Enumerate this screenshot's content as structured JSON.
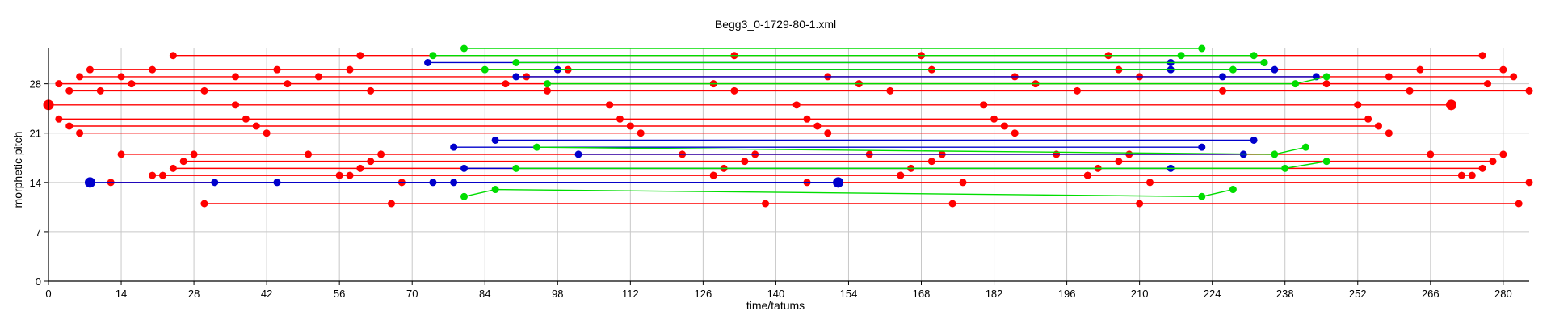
{
  "chart_data": {
    "type": "scatter",
    "title": "Begg3_0-1729-80-1.xml",
    "xlabel": "time/tatums",
    "ylabel": "morphetic pitch",
    "xlim": [
      0,
      285
    ],
    "ylim": [
      0,
      33
    ],
    "xticks": [
      0,
      14,
      28,
      42,
      56,
      70,
      84,
      98,
      112,
      126,
      140,
      154,
      168,
      182,
      196,
      210,
      224,
      238,
      252,
      266,
      280
    ],
    "yticks": [
      0,
      7,
      14,
      21,
      28
    ],
    "grid": true,
    "colors": {
      "red": "#ff0000",
      "blue": "#0000cc",
      "green": "#00dd00",
      "grid": "#c8c8c8"
    },
    "series": [
      {
        "color": "red",
        "lines": [
          {
            "x": [
              0,
              36,
              108,
              144,
              180,
              252,
              270
            ],
            "y": [
              25,
              25,
              25,
              25,
              25,
              25,
              25
            ],
            "big": true
          },
          {
            "x": [
              2,
              16,
              46,
              88,
              128,
              156,
              190,
              246,
              277
            ],
            "y": [
              28,
              28,
              28,
              28,
              28,
              28,
              28,
              28,
              28
            ]
          },
          {
            "x": [
              4,
              10,
              30,
              62,
              96,
              132,
              162,
              198,
              226,
              262,
              285
            ],
            "y": [
              27,
              27,
              27,
              27,
              27,
              27,
              27,
              27,
              27,
              27,
              27
            ]
          },
          {
            "x": [
              6,
              14,
              36,
              52,
              92,
              150,
              186,
              210,
              258,
              282
            ],
            "y": [
              29,
              29,
              29,
              29,
              29,
              29,
              29,
              29,
              29,
              29
            ]
          },
          {
            "x": [
              8,
              20,
              44,
              58,
              100,
              170,
              206,
              264,
              280
            ],
            "y": [
              30,
              30,
              30,
              30,
              30,
              30,
              30,
              30,
              30
            ]
          },
          {
            "x": [
              24,
              60,
              132,
              168,
              204,
              276
            ],
            "y": [
              32,
              32,
              32,
              32,
              32,
              32
            ]
          },
          {
            "x": [
              2,
              38,
              110,
              146,
              182,
              254
            ],
            "y": [
              23,
              23,
              23,
              23,
              23,
              23
            ]
          },
          {
            "x": [
              4,
              40,
              112,
              148,
              184,
              256
            ],
            "y": [
              22,
              22,
              22,
              22,
              22,
              22
            ]
          },
          {
            "x": [
              6,
              42,
              114,
              150,
              186,
              258
            ],
            "y": [
              21,
              21,
              21,
              21,
              21,
              21
            ]
          },
          {
            "x": [
              14,
              50,
              122,
              158,
              194,
              266
            ],
            "y": [
              18,
              18,
              18,
              18,
              18,
              18
            ]
          },
          {
            "x": [
              20,
              56,
              128,
              164,
              200,
              272
            ],
            "y": [
              15,
              15,
              15,
              15,
              15,
              15
            ]
          },
          {
            "x": [
              30,
              66,
              138,
              174,
              210,
              283
            ],
            "y": [
              11,
              11,
              11,
              11,
              11,
              11
            ]
          },
          {
            "x": [
              12,
              68,
              146,
              176,
              212,
              285
            ],
            "y": [
              14,
              14,
              14,
              14,
              14,
              14
            ]
          },
          {
            "x": [
              26,
              62,
              134,
              170,
              206,
              278
            ],
            "y": [
              17,
              17,
              17,
              17,
              17,
              17
            ]
          },
          {
            "x": [
              28,
              64,
              136,
              172,
              208,
              280
            ],
            "y": [
              18,
              18,
              18,
              18,
              18,
              18
            ]
          },
          {
            "x": [
              24,
              60,
              130,
              166,
              202,
              276
            ],
            "y": [
              16,
              16,
              16,
              16,
              16,
              16
            ]
          },
          {
            "x": [
              22,
              58,
              128,
              164,
              200,
              274
            ],
            "y": [
              15,
              15,
              15,
              15,
              15,
              15
            ]
          }
        ]
      },
      {
        "color": "blue",
        "lines": [
          {
            "x": [
              8,
              152
            ],
            "y": [
              14,
              14
            ],
            "big": true
          },
          {
            "x": [
              32,
              44,
              74,
              78,
              152
            ],
            "y": [
              14,
              14,
              14,
              14,
              14
            ]
          },
          {
            "x": [
              73,
              216,
              234
            ],
            "y": [
              31,
              31,
              31
            ]
          },
          {
            "x": [
              86,
              232
            ],
            "y": [
              20,
              20
            ]
          },
          {
            "x": [
              78,
              222
            ],
            "y": [
              19,
              19
            ]
          },
          {
            "x": [
              90,
              226,
              244
            ],
            "y": [
              29,
              29,
              29
            ]
          },
          {
            "x": [
              98,
              216,
              236
            ],
            "y": [
              30,
              30,
              30
            ]
          },
          {
            "x": [
              102,
              230
            ],
            "y": [
              18,
              18
            ]
          },
          {
            "x": [
              80,
              216
            ],
            "y": [
              16,
              16
            ]
          }
        ]
      },
      {
        "color": "green",
        "lines": [
          {
            "x": [
              74,
              218,
              232
            ],
            "y": [
              32,
              32,
              32
            ]
          },
          {
            "x": [
              80,
              222
            ],
            "y": [
              33,
              33
            ]
          },
          {
            "x": [
              84,
              228
            ],
            "y": [
              30,
              30
            ]
          },
          {
            "x": [
              90,
              234
            ],
            "y": [
              31,
              31
            ]
          },
          {
            "x": [
              96,
              240,
              246
            ],
            "y": [
              28,
              28,
              29
            ]
          },
          {
            "x": [
              94,
              236,
              242
            ],
            "y": [
              19,
              18,
              19
            ]
          },
          {
            "x": [
              90,
              238,
              246
            ],
            "y": [
              16,
              16,
              17
            ]
          },
          {
            "x": [
              80,
              86,
              222,
              228
            ],
            "y": [
              12,
              13,
              12,
              13
            ]
          }
        ]
      }
    ]
  }
}
